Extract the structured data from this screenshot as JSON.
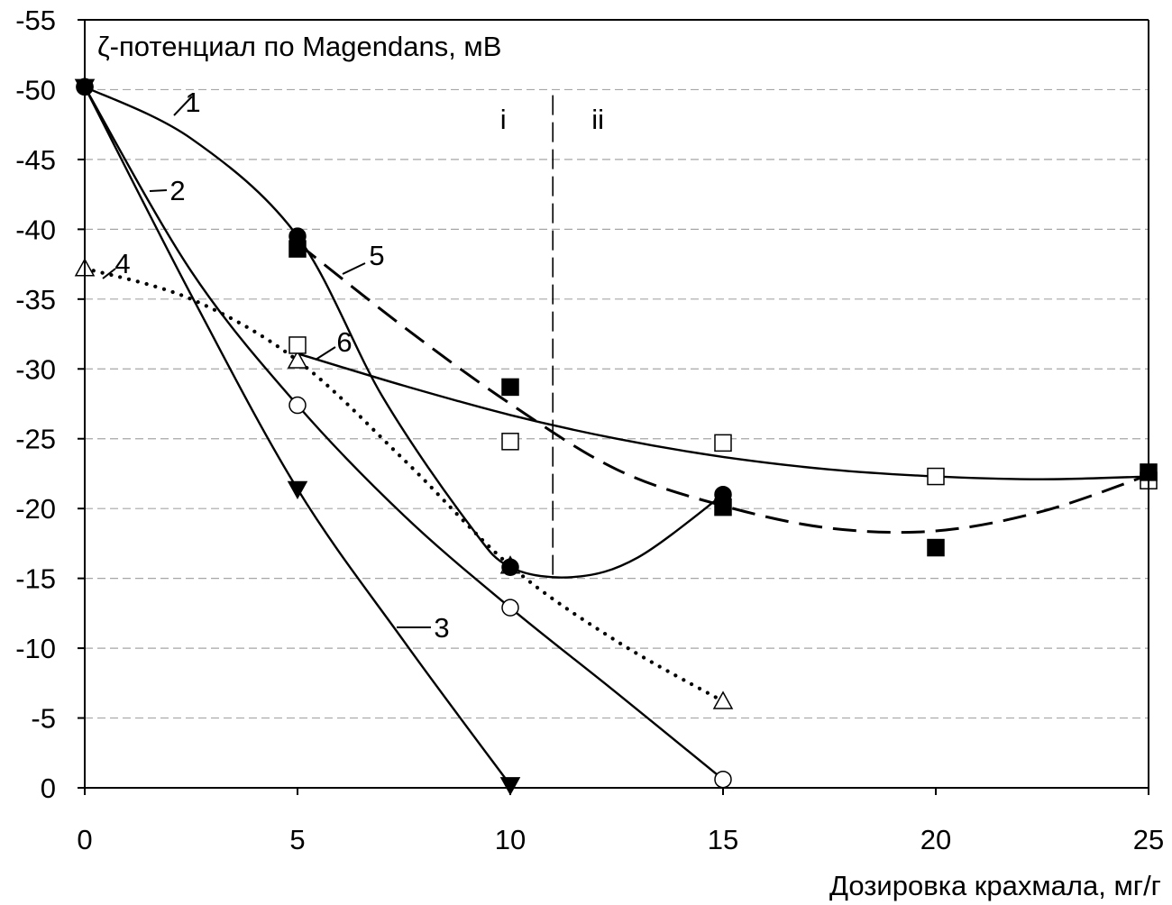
{
  "chart_data": {
    "type": "line",
    "ylabel": "ζ-потенциал по Magendans, мВ",
    "xlabel": "Дозировка крахмала, мг/г",
    "xlim": [
      0,
      25
    ],
    "ylim": [
      0,
      -55
    ],
    "x_ticks": [
      "0",
      "5",
      "10",
      "15",
      "20",
      "25"
    ],
    "y_ticks": [
      "0",
      "-5",
      "-10",
      "-15",
      "-20",
      "-25",
      "-30",
      "-35",
      "-40",
      "-45",
      "-50",
      "-55"
    ],
    "grid": "horizontal dashed",
    "divider": {
      "x": 11,
      "style": "dashed",
      "left_label": "i",
      "right_label": "ii"
    },
    "series": [
      {
        "id": "1",
        "marker": "filled-circle",
        "line": "solid",
        "points": [
          [
            0,
            -50.2
          ],
          [
            5,
            -39.5
          ],
          [
            10,
            -15.8
          ],
          [
            15,
            -21.0
          ]
        ],
        "curve": [
          [
            0,
            -50.2
          ],
          [
            2.5,
            -46.5
          ],
          [
            5,
            -39.5
          ],
          [
            7,
            -28
          ],
          [
            9,
            -19
          ],
          [
            10,
            -15.8
          ],
          [
            11.5,
            -15.1
          ],
          [
            13,
            -16.5
          ],
          [
            15,
            -21.0
          ]
        ]
      },
      {
        "id": "2",
        "marker": "open-circle",
        "line": "solid",
        "points": [
          [
            0,
            -50.2
          ],
          [
            5,
            -27.4
          ],
          [
            10,
            -12.9
          ],
          [
            15,
            -0.6
          ]
        ],
        "curve": [
          [
            0,
            -50.2
          ],
          [
            2.5,
            -37
          ],
          [
            5,
            -27.4
          ],
          [
            7.5,
            -19.5
          ],
          [
            10,
            -12.9
          ],
          [
            12.5,
            -6.8
          ],
          [
            15,
            -0.6
          ]
        ]
      },
      {
        "id": "3",
        "marker": "filled-triangle-down",
        "line": "solid",
        "points": [
          [
            0,
            -50.2
          ],
          [
            5,
            -21.4
          ],
          [
            10,
            -0.2
          ]
        ],
        "curve": [
          [
            0,
            -50.2
          ],
          [
            2.5,
            -35.3
          ],
          [
            5,
            -21.4
          ],
          [
            7.5,
            -10.5
          ],
          [
            10,
            -0.2
          ]
        ]
      },
      {
        "id": "4",
        "marker": "open-triangle",
        "line": "dotted",
        "points": [
          [
            0,
            -37.2
          ],
          [
            5,
            -30.6
          ],
          [
            10,
            -15.9
          ],
          [
            15,
            -6.2
          ]
        ],
        "curve": [
          [
            0,
            -37.2
          ],
          [
            2.5,
            -35
          ],
          [
            5,
            -30.6
          ],
          [
            7.5,
            -23.5
          ],
          [
            10,
            -15.9
          ],
          [
            12.5,
            -10.5
          ],
          [
            15,
            -6.2
          ]
        ]
      },
      {
        "id": "5",
        "marker": "filled-square",
        "line": "dashed",
        "points": [
          [
            5,
            -38.6
          ],
          [
            10,
            -28.7
          ],
          [
            15,
            -20.1
          ],
          [
            20,
            -17.2
          ],
          [
            25,
            -22.6
          ]
        ],
        "curve": [
          [
            5,
            -39.0
          ],
          [
            7.5,
            -33
          ],
          [
            10,
            -27.5
          ],
          [
            12.5,
            -22.8
          ],
          [
            15,
            -20.2
          ],
          [
            17.5,
            -18.6
          ],
          [
            20,
            -18.4
          ],
          [
            22.5,
            -19.8
          ],
          [
            25,
            -22.4
          ]
        ]
      },
      {
        "id": "6",
        "marker": "open-square",
        "line": "solid",
        "points": [
          [
            5,
            -31.7
          ],
          [
            10,
            -24.8
          ],
          [
            15,
            -24.7
          ],
          [
            20,
            -22.3
          ],
          [
            25,
            -22.0
          ]
        ],
        "curve": [
          [
            5,
            -31.1
          ],
          [
            7.5,
            -28.8
          ],
          [
            10,
            -26.7
          ],
          [
            12.5,
            -25.0
          ],
          [
            15,
            -23.7
          ],
          [
            17.5,
            -22.8
          ],
          [
            20,
            -22.3
          ],
          [
            22.5,
            -22.1
          ],
          [
            25,
            -22.3
          ]
        ]
      }
    ]
  }
}
